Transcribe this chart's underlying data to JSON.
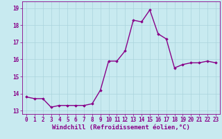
{
  "x": [
    0,
    1,
    2,
    3,
    4,
    5,
    6,
    7,
    8,
    9,
    10,
    11,
    12,
    13,
    14,
    15,
    16,
    17,
    18,
    19,
    20,
    21,
    22,
    23
  ],
  "y": [
    13.8,
    13.7,
    13.7,
    13.2,
    13.3,
    13.3,
    13.3,
    13.3,
    13.4,
    14.2,
    15.9,
    15.9,
    16.5,
    18.3,
    18.2,
    18.9,
    17.5,
    17.2,
    15.5,
    15.7,
    15.8,
    15.8,
    15.9,
    15.8
  ],
  "line_color": "#880088",
  "marker": "D",
  "marker_size": 1.8,
  "bg_color": "#c8eaf0",
  "grid_color": "#aad4dc",
  "xlabel": "Windchill (Refroidissement éolien,°C)",
  "xlim": [
    -0.5,
    23.5
  ],
  "ylim": [
    12.8,
    19.4
  ],
  "yticks": [
    13,
    14,
    15,
    16,
    17,
    18,
    19
  ],
  "xticks": [
    0,
    1,
    2,
    3,
    4,
    5,
    6,
    7,
    8,
    9,
    10,
    11,
    12,
    13,
    14,
    15,
    16,
    17,
    18,
    19,
    20,
    21,
    22,
    23
  ],
  "tick_label_color": "#880088",
  "tick_label_size": 5.5,
  "xlabel_size": 6.5,
  "linewidth": 1.0,
  "spine_color": "#880088"
}
